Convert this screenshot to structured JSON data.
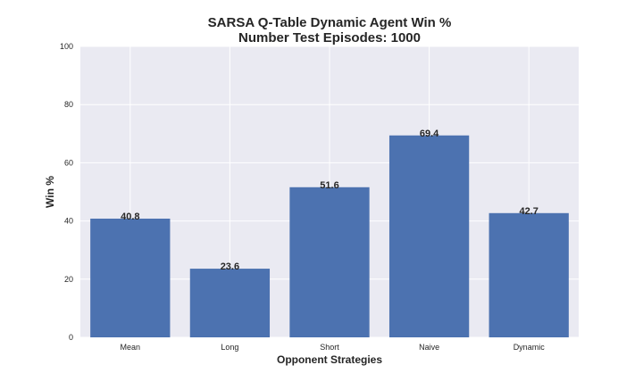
{
  "chart_data": {
    "type": "bar",
    "title": "SARSA Q-Table Dynamic Agent Win %",
    "subtitle": "Number Test Episodes: 1000",
    "xlabel": "Opponent Strategies",
    "ylabel": "Win %",
    "categories": [
      "Mean",
      "Long",
      "Short",
      "Naive",
      "Dynamic"
    ],
    "values": [
      40.8,
      23.6,
      51.6,
      69.4,
      42.7
    ],
    "data_labels": [
      "40.8",
      "23.6",
      "51.6",
      "69.4",
      "42.7"
    ],
    "ylim": [
      0,
      100
    ],
    "yticks": [
      0,
      20,
      40,
      60,
      80,
      100
    ],
    "ytick_labels": [
      "0",
      "20",
      "40",
      "60",
      "80",
      "100"
    ],
    "grid": true,
    "colors": {
      "bar": "#4c72b0",
      "plot_background": "#eaeaf2",
      "grid": "#ffffff",
      "text": "#262626"
    }
  }
}
